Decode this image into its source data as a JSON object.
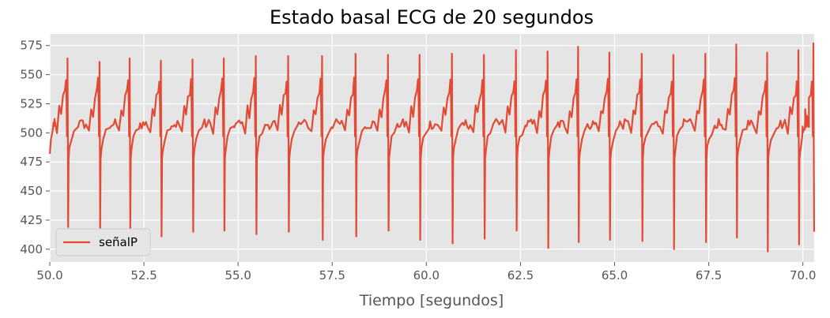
{
  "chart_data": {
    "type": "line",
    "title": "Estado basal ECG de 20 segundos",
    "xlabel": "Tiempo [segundos]",
    "ylabel": "",
    "xlim": [
      50.0,
      70.3
    ],
    "ylim": [
      389,
      585
    ],
    "x_ticks": [
      50.0,
      52.5,
      55.0,
      57.5,
      60.0,
      62.5,
      65.0,
      67.5,
      70.0
    ],
    "x_tick_labels": [
      "50.0",
      "52.5",
      "55.0",
      "57.5",
      "60.0",
      "62.5",
      "65.0",
      "67.5",
      "70.0"
    ],
    "y_ticks": [
      400,
      425,
      450,
      475,
      500,
      525,
      550,
      575
    ],
    "y_tick_labels": [
      "400",
      "425",
      "450",
      "475",
      "500",
      "525",
      "550",
      "575"
    ],
    "grid": true,
    "legend_position": "lower-left",
    "series": [
      {
        "name": "señalP",
        "color": "#E24A33",
        "beats": [
          {
            "t": 50.47,
            "peak": 564,
            "trough": 419
          },
          {
            "t": 51.32,
            "peak": 561,
            "trough": 417
          },
          {
            "t": 52.12,
            "peak": 564,
            "trough": 417
          },
          {
            "t": 52.95,
            "peak": 562,
            "trough": 411
          },
          {
            "t": 53.79,
            "peak": 563,
            "trough": 415
          },
          {
            "t": 54.62,
            "peak": 564,
            "trough": 416
          },
          {
            "t": 55.47,
            "peak": 566,
            "trough": 413
          },
          {
            "t": 56.33,
            "peak": 566,
            "trough": 415
          },
          {
            "t": 57.23,
            "peak": 566,
            "trough": 408
          },
          {
            "t": 58.12,
            "peak": 568,
            "trough": 411
          },
          {
            "t": 58.98,
            "peak": 567,
            "trough": 416
          },
          {
            "t": 59.82,
            "peak": 567,
            "trough": 408
          },
          {
            "t": 60.68,
            "peak": 568,
            "trough": 405
          },
          {
            "t": 61.53,
            "peak": 567,
            "trough": 409
          },
          {
            "t": 62.38,
            "peak": 571,
            "trough": 416
          },
          {
            "t": 63.22,
            "peak": 570,
            "trough": 401
          },
          {
            "t": 64.03,
            "peak": 574,
            "trough": 406
          },
          {
            "t": 64.86,
            "peak": 569,
            "trough": 408
          },
          {
            "t": 65.72,
            "peak": 568,
            "trough": 407
          },
          {
            "t": 66.56,
            "peak": 567,
            "trough": 400
          },
          {
            "t": 67.41,
            "peak": 568,
            "trough": 406
          },
          {
            "t": 68.23,
            "peak": 576,
            "trough": 410
          },
          {
            "t": 69.05,
            "peak": 569,
            "trough": 398
          },
          {
            "t": 69.88,
            "peak": 571,
            "trough": 404
          },
          {
            "t": 70.28,
            "peak": 577,
            "trough": 415
          }
        ]
      }
    ],
    "background_color": "#E5E5E5",
    "grid_color": "#FFFFFF"
  }
}
